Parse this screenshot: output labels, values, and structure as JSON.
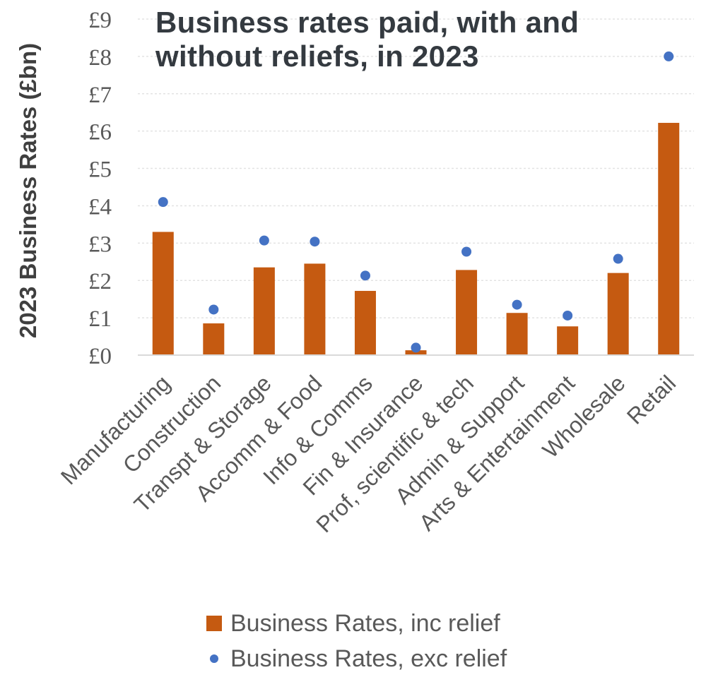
{
  "chart_data": {
    "type": "bar",
    "title": "Business rates paid, with and without reliefs, in 2023",
    "title_lines": [
      "Business rates paid, with and",
      "without reliefs, in 2023"
    ],
    "ylabel": "2023 Business Rates (£bn)",
    "xlabel": "",
    "ylim": [
      0,
      9
    ],
    "yticks": [
      "£0",
      "£1",
      "£2",
      "£3",
      "£4",
      "£5",
      "£6",
      "£7",
      "£8",
      "£9"
    ],
    "categories": [
      "Manufacturing",
      "Construction",
      "Transpt & Storage",
      "Accomm & Food",
      "Info & Comms",
      "Fin & Insurance",
      "Prof, scientific & tech",
      "Admin & Support",
      "Arts & Entertainment",
      "Wholesale",
      "Retail"
    ],
    "series": [
      {
        "name": "Business Rates, inc relief",
        "type": "bar",
        "color": "#c55a11",
        "values": [
          3.3,
          0.85,
          2.35,
          2.45,
          1.72,
          0.13,
          2.28,
          1.13,
          0.77,
          2.2,
          6.22
        ]
      },
      {
        "name": "Business Rates, exc relief",
        "type": "scatter",
        "color": "#4472c4",
        "values": [
          4.1,
          1.22,
          3.07,
          3.04,
          2.13,
          0.2,
          2.77,
          1.35,
          1.06,
          2.58,
          8.0
        ]
      }
    ],
    "grid": true,
    "legend_position": "bottom"
  }
}
